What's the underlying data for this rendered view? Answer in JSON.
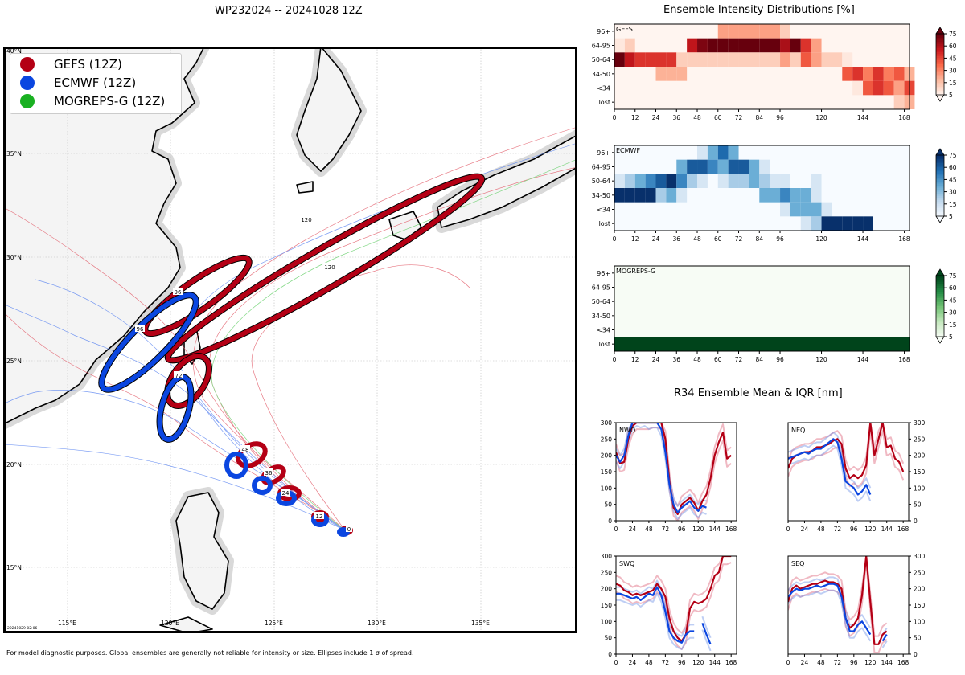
{
  "colors": {
    "gefs": "#b40015",
    "ecmwf": "#0b46e0",
    "mogreps": "#19b021",
    "land": "#f4f4f4",
    "ocean": "#ffffff"
  },
  "map": {
    "title": "WP232024 -- 20241028 12Z",
    "lon_labels": [
      "115°E",
      "120°E",
      "125°E",
      "130°E",
      "135°E"
    ],
    "lat_labels": [
      "40°N",
      "35°N",
      "30°N",
      "25°N",
      "20°N",
      "15°N"
    ],
    "stamp": "20241029 02:06",
    "legend": [
      {
        "label": "GEFS (12Z)",
        "color": "#b40015"
      },
      {
        "label": "ECMWF (12Z)",
        "color": "#0b46e0"
      },
      {
        "label": "MOGREPS-G (12Z)",
        "color": "#19b021"
      }
    ],
    "ellipse_labels": [
      "0",
      "12",
      "24",
      "36",
      "48",
      "72",
      "96",
      "120"
    ],
    "footer": "For model diagnostic purposes. Global ensembles are generally not reliable for intensity or size. Ellipses include 1 σ of spread."
  },
  "chart_data": [
    {
      "type": "heatmap",
      "title": "Ensemble Intensity Distributions [%]",
      "panel": "GEFS",
      "colormap": "reds",
      "x_ticks": [
        "0",
        "12",
        "24",
        "36",
        "48",
        "60",
        "72",
        "84",
        "96",
        "120",
        "144",
        "168"
      ],
      "y_labels": [
        "96+",
        "64-95",
        "50-64",
        "34-50",
        "<34",
        "lost"
      ],
      "colorbar_ticks": [
        "75",
        "60",
        "45",
        "30",
        "15",
        "5"
      ],
      "columns": [
        "0",
        "6",
        "12",
        "18",
        "24",
        "30",
        "36",
        "42",
        "48",
        "54",
        "60",
        "66",
        "72",
        "78",
        "84",
        "90",
        "96",
        "102",
        "108",
        "114",
        "120",
        "126",
        "132",
        "138",
        "144",
        "150",
        "156",
        "162",
        "168"
      ],
      "values": [
        [
          0,
          0,
          0,
          0,
          0,
          0,
          0,
          0,
          0,
          0,
          30,
          30,
          30,
          30,
          30,
          30,
          15,
          0,
          0,
          0,
          0,
          0,
          0,
          0,
          0,
          0,
          0,
          0,
          0
        ],
        [
          5,
          15,
          0,
          0,
          0,
          0,
          0,
          70,
          85,
          90,
          90,
          90,
          90,
          90,
          90,
          90,
          75,
          90,
          60,
          30,
          0,
          0,
          0,
          0,
          0,
          0,
          0,
          0,
          0
        ],
        [
          90,
          70,
          60,
          60,
          60,
          60,
          15,
          15,
          15,
          15,
          15,
          15,
          15,
          15,
          15,
          15,
          30,
          15,
          50,
          30,
          15,
          15,
          5,
          0,
          0,
          0,
          0,
          0,
          0
        ],
        [
          0,
          0,
          0,
          0,
          25,
          25,
          25,
          0,
          0,
          0,
          0,
          0,
          0,
          0,
          0,
          0,
          0,
          0,
          0,
          0,
          0,
          0,
          50,
          60,
          40,
          60,
          40,
          50,
          25
        ],
        [
          0,
          0,
          0,
          0,
          0,
          0,
          0,
          0,
          0,
          0,
          0,
          0,
          0,
          0,
          0,
          0,
          0,
          0,
          0,
          0,
          0,
          0,
          0,
          5,
          50,
          60,
          50,
          30,
          55
        ],
        [
          0,
          0,
          0,
          0,
          0,
          0,
          0,
          0,
          0,
          0,
          0,
          0,
          0,
          0,
          0,
          0,
          0,
          0,
          0,
          0,
          0,
          0,
          0,
          0,
          0,
          0,
          0,
          15,
          25
        ]
      ]
    },
    {
      "type": "heatmap",
      "panel": "ECMWF",
      "colormap": "blues",
      "x_ticks": [
        "0",
        "12",
        "24",
        "36",
        "48",
        "60",
        "72",
        "84",
        "96",
        "120",
        "144",
        "168"
      ],
      "y_labels": [
        "96+",
        "64-95",
        "50-64",
        "34-50",
        "<34",
        "lost"
      ],
      "colorbar_ticks": [
        "75",
        "60",
        "45",
        "30",
        "15",
        "5"
      ],
      "columns": [
        "0",
        "6",
        "12",
        "18",
        "24",
        "30",
        "36",
        "42",
        "48",
        "54",
        "60",
        "66",
        "72",
        "78",
        "84",
        "90",
        "96",
        "102",
        "108",
        "114",
        "120",
        "126",
        "132",
        "138",
        "144"
      ],
      "values": [
        [
          0,
          0,
          0,
          0,
          0,
          0,
          0,
          0,
          15,
          45,
          70,
          45,
          0,
          0,
          0,
          0,
          0,
          0,
          0,
          0,
          0,
          0,
          0,
          0,
          0
        ],
        [
          0,
          0,
          0,
          0,
          0,
          0,
          45,
          75,
          75,
          60,
          45,
          75,
          75,
          45,
          15,
          0,
          0,
          0,
          0,
          0,
          0,
          0,
          0,
          0,
          0
        ],
        [
          15,
          30,
          45,
          60,
          75,
          90,
          60,
          30,
          15,
          0,
          15,
          30,
          30,
          45,
          30,
          15,
          15,
          0,
          0,
          15,
          0,
          0,
          0,
          0,
          0
        ],
        [
          90,
          90,
          90,
          90,
          30,
          45,
          15,
          0,
          0,
          0,
          0,
          0,
          0,
          0,
          45,
          45,
          60,
          45,
          45,
          15,
          0,
          0,
          0,
          0,
          0
        ],
        [
          0,
          0,
          0,
          0,
          0,
          0,
          0,
          0,
          0,
          0,
          0,
          0,
          0,
          0,
          0,
          0,
          15,
          45,
          45,
          45,
          15,
          0,
          0,
          0,
          0
        ],
        [
          0,
          0,
          0,
          0,
          0,
          0,
          0,
          0,
          0,
          0,
          0,
          0,
          0,
          0,
          0,
          0,
          0,
          0,
          15,
          30,
          90,
          90,
          90,
          90,
          90
        ]
      ]
    },
    {
      "type": "heatmap",
      "panel": "MOGREPS-G",
      "colormap": "greens",
      "x_ticks": [
        "0",
        "12",
        "24",
        "36",
        "48",
        "60",
        "72",
        "84",
        "96",
        "120",
        "144",
        "168"
      ],
      "y_labels": [
        "96+",
        "64-95",
        "50-64",
        "34-50",
        "<34",
        "lost"
      ],
      "colorbar_ticks": [
        "75",
        "60",
        "45",
        "30",
        "15",
        "5"
      ],
      "columns": [
        "0",
        "168"
      ],
      "values": [
        [
          0,
          0
        ],
        [
          0,
          0
        ],
        [
          0,
          0
        ],
        [
          0,
          0
        ],
        [
          0,
          0
        ],
        [
          100,
          100
        ]
      ]
    },
    {
      "type": "line",
      "title": "R34 Ensemble Mean & IQR [nm]",
      "panels": [
        {
          "label": "NWQ",
          "x": [
            0,
            6,
            12,
            18,
            24,
            30,
            36,
            42,
            48,
            54,
            60,
            66,
            72,
            78,
            84,
            90,
            96,
            102,
            108,
            114,
            120,
            126,
            132,
            138,
            144,
            150,
            156,
            162,
            168
          ],
          "gefs_mean": [
            210,
            175,
            180,
            250,
            290,
            305,
            305,
            305,
            305,
            310,
            310,
            305,
            250,
            120,
            40,
            20,
            50,
            60,
            70,
            55,
            30,
            60,
            80,
            130,
            200,
            240,
            270,
            190,
            200
          ],
          "ecmwf_mean": [
            200,
            180,
            200,
            260,
            300,
            310,
            305,
            310,
            300,
            305,
            305,
            280,
            210,
            110,
            50,
            25,
            40,
            50,
            60,
            40,
            30,
            45,
            40,
            null,
            null,
            null,
            null,
            null,
            null
          ],
          "ylim": [
            0,
            300
          ],
          "yticks": [
            "300",
            "250",
            "200",
            "150",
            "100",
            "50",
            "0"
          ],
          "xticks": [
            "0",
            "24",
            "48",
            "72",
            "96",
            "120",
            "144",
            "168"
          ]
        },
        {
          "label": "NEQ",
          "x": [
            0,
            6,
            12,
            18,
            24,
            30,
            36,
            42,
            48,
            54,
            60,
            66,
            72,
            78,
            84,
            90,
            96,
            102,
            108,
            114,
            120,
            126,
            132,
            138,
            144,
            150,
            156,
            162,
            168
          ],
          "gefs_mean": [
            160,
            190,
            200,
            205,
            210,
            210,
            215,
            225,
            225,
            230,
            235,
            245,
            250,
            235,
            160,
            130,
            140,
            130,
            140,
            170,
            300,
            200,
            250,
            300,
            225,
            230,
            190,
            180,
            150
          ],
          "ecmwf_mean": [
            190,
            195,
            200,
            205,
            210,
            205,
            215,
            220,
            220,
            230,
            240,
            250,
            240,
            190,
            120,
            110,
            100,
            80,
            90,
            110,
            80,
            null,
            null,
            null,
            null,
            null,
            null,
            null,
            null
          ],
          "ylim": [
            0,
            300
          ],
          "yticks": [
            "300",
            "250",
            "200",
            "150",
            "100",
            "50",
            "0"
          ],
          "xticks": [
            "0",
            "24",
            "48",
            "72",
            "96",
            "120",
            "144",
            "168"
          ]
        },
        {
          "label": "SWQ",
          "x": [
            0,
            6,
            12,
            18,
            24,
            30,
            36,
            42,
            48,
            54,
            60,
            66,
            72,
            78,
            84,
            90,
            96,
            102,
            108,
            114,
            120,
            126,
            132,
            138,
            144,
            150,
            156,
            162,
            168
          ],
          "gefs_mean": [
            215,
            210,
            195,
            190,
            180,
            185,
            180,
            185,
            190,
            195,
            215,
            200,
            175,
            110,
            70,
            50,
            40,
            60,
            140,
            160,
            155,
            160,
            170,
            200,
            240,
            250,
            300,
            300,
            305
          ],
          "ecmwf_mean": [
            185,
            185,
            180,
            175,
            170,
            175,
            165,
            175,
            185,
            180,
            205,
            180,
            130,
            70,
            50,
            40,
            35,
            60,
            70,
            70,
            null,
            95,
            60,
            30,
            null,
            null,
            null,
            null,
            null
          ],
          "ylim": [
            0,
            300
          ],
          "yticks": [
            "300",
            "250",
            "200",
            "150",
            "100",
            "50",
            "0"
          ],
          "xticks": [
            "0",
            "24",
            "48",
            "72",
            "96",
            "120",
            "144",
            "168"
          ]
        },
        {
          "label": "SEQ",
          "x": [
            0,
            6,
            12,
            18,
            24,
            30,
            36,
            42,
            48,
            54,
            60,
            66,
            72,
            78,
            84,
            90,
            96,
            102,
            108,
            114,
            120,
            126,
            132,
            138,
            144,
            150,
            156,
            162,
            168
          ],
          "gefs_mean": [
            160,
            200,
            210,
            200,
            205,
            210,
            215,
            215,
            220,
            225,
            220,
            220,
            215,
            200,
            110,
            80,
            90,
            110,
            180,
            305,
            160,
            30,
            30,
            60,
            70,
            null,
            null,
            null,
            null
          ],
          "ecmwf_mean": [
            175,
            190,
            200,
            195,
            200,
            200,
            205,
            210,
            205,
            210,
            215,
            215,
            210,
            175,
            110,
            70,
            70,
            90,
            100,
            80,
            60,
            null,
            null,
            40,
            60,
            null,
            null,
            null,
            null
          ],
          "ylim": [
            0,
            300
          ],
          "yticks": [
            "300",
            "250",
            "200",
            "150",
            "100",
            "50",
            "0"
          ],
          "xticks": [
            "0",
            "24",
            "48",
            "72",
            "96",
            "120",
            "144",
            "168"
          ]
        }
      ]
    }
  ]
}
